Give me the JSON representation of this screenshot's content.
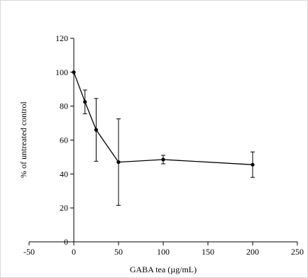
{
  "chart_data": {
    "type": "line",
    "title": "",
    "xlabel": "GABA tea (µg/mL)",
    "ylabel": "% of untreated control",
    "xlim": [
      -50,
      250
    ],
    "ylim": [
      0,
      120
    ],
    "xticks": [
      -50,
      0,
      50,
      100,
      150,
      200,
      250
    ],
    "yticks": [
      0,
      20,
      40,
      60,
      80,
      100,
      120
    ],
    "grid": false,
    "legend": "none",
    "series": [
      {
        "x": [
          0,
          12.5,
          25,
          50,
          100,
          200
        ],
        "y": [
          100,
          82.5,
          66,
          47,
          48.5,
          45.5
        ],
        "error": [
          0,
          7,
          18.5,
          25.5,
          2.5,
          7.5
        ]
      }
    ],
    "colors": {
      "line": "#000000",
      "marker": "#000000",
      "frame": "#d9d9d9"
    }
  }
}
